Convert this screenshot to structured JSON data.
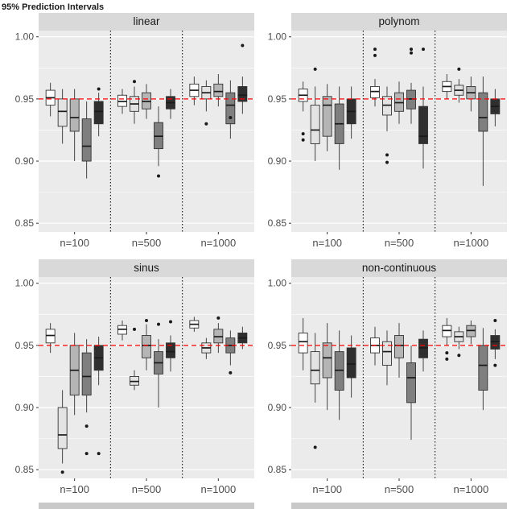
{
  "title_fragment": "95% Prediction Intervals",
  "colors": {
    "strip_bg": "#d9d9d9",
    "strip_text": "#1a1a1a",
    "panel_bg": "#ebebeb",
    "grid": "#ffffff",
    "axis_text": "#4d4d4d",
    "ref_line": "#ff0000",
    "box_stroke": "#333333",
    "median": "#1a1a1a",
    "outlier": "#1a1a1a"
  },
  "box_fills": [
    "#ffffff",
    "#e3e3e3",
    "#b5b5b5",
    "#7f7f7f",
    "#2f2f2f"
  ],
  "axis": {
    "y_ticks": [
      "1.00",
      "0.95",
      "0.90",
      "0.85"
    ],
    "y_tick_values": [
      1.0,
      0.95,
      0.9,
      0.85
    ],
    "y_minor": [
      0.975,
      0.925,
      0.875
    ],
    "ylim": [
      0.843,
      1.005
    ],
    "ref_line": 0.95,
    "x_groups": [
      "n=100",
      "n=500",
      "n=1000"
    ]
  },
  "chart_data": [
    {
      "type": "boxplot",
      "title": "linear",
      "groups": [
        {
          "label": "n=100",
          "boxes": [
            [
              0.936,
              0.945,
              0.951,
              0.957,
              0.963
            ],
            [
              0.914,
              0.928,
              0.94,
              0.95,
              0.958
            ],
            [
              0.9,
              0.924,
              0.935,
              0.95,
              0.958
            ],
            [
              0.886,
              0.9,
              0.912,
              0.934,
              0.948
            ],
            [
              0.92,
              0.93,
              0.94,
              0.948,
              0.955
            ]
          ],
          "outliers": [
            [],
            [],
            [],
            [],
            [
              0.958
            ]
          ]
        },
        {
          "label": "n=500",
          "boxes": [
            [
              0.938,
              0.944,
              0.948,
              0.953,
              0.958
            ],
            [
              0.93,
              0.94,
              0.946,
              0.952,
              0.96
            ],
            [
              0.934,
              0.942,
              0.948,
              0.955,
              0.962
            ],
            [
              0.896,
              0.91,
              0.92,
              0.931,
              0.944
            ],
            [
              0.934,
              0.942,
              0.947,
              0.952,
              0.958
            ]
          ],
          "outliers": [
            [],
            [
              0.964
            ],
            [],
            [
              0.888
            ],
            []
          ]
        },
        {
          "label": "n=1000",
          "boxes": [
            [
              0.945,
              0.952,
              0.957,
              0.962,
              0.968
            ],
            [
              0.94,
              0.95,
              0.955,
              0.96,
              0.965
            ],
            [
              0.944,
              0.952,
              0.956,
              0.962,
              0.97
            ],
            [
              0.918,
              0.93,
              0.945,
              0.955,
              0.965
            ],
            [
              0.938,
              0.948,
              0.953,
              0.96,
              0.968
            ]
          ],
          "outliers": [
            [],
            [
              0.93
            ],
            [],
            [
              0.935
            ],
            [
              0.993
            ]
          ]
        }
      ]
    },
    {
      "type": "boxplot",
      "title": "polynom",
      "groups": [
        {
          "label": "n=100",
          "boxes": [
            [
              0.94,
              0.948,
              0.953,
              0.958,
              0.964
            ],
            [
              0.9,
              0.914,
              0.925,
              0.945,
              0.96
            ],
            [
              0.908,
              0.92,
              0.945,
              0.952,
              0.962
            ],
            [
              0.893,
              0.914,
              0.93,
              0.946,
              0.96
            ],
            [
              0.918,
              0.93,
              0.94,
              0.95,
              0.96
            ]
          ],
          "outliers": [
            [
              0.922,
              0.917
            ],
            [
              0.974
            ],
            [],
            [],
            []
          ]
        },
        {
          "label": "n=500",
          "boxes": [
            [
              0.944,
              0.951,
              0.956,
              0.96,
              0.966
            ],
            [
              0.924,
              0.937,
              0.945,
              0.952,
              0.96
            ],
            [
              0.93,
              0.94,
              0.947,
              0.955,
              0.964
            ],
            [
              0.93,
              0.942,
              0.95,
              0.957,
              0.963
            ],
            [
              0.894,
              0.914,
              0.92,
              0.944,
              0.96
            ]
          ],
          "outliers": [
            [
              0.985,
              0.99
            ],
            [
              0.905,
              0.899
            ],
            [],
            [
              0.99,
              0.987
            ],
            [
              0.99
            ]
          ]
        },
        {
          "label": "n=1000",
          "boxes": [
            [
              0.95,
              0.956,
              0.96,
              0.964,
              0.97
            ],
            [
              0.947,
              0.953,
              0.957,
              0.961,
              0.966
            ],
            [
              0.94,
              0.95,
              0.955,
              0.96,
              0.968
            ],
            [
              0.88,
              0.924,
              0.935,
              0.955,
              0.968
            ],
            [
              0.928,
              0.938,
              0.944,
              0.95,
              0.958
            ]
          ],
          "outliers": [
            [],
            [
              0.974
            ],
            [],
            [],
            []
          ]
        }
      ]
    },
    {
      "type": "boxplot",
      "title": "sinus",
      "groups": [
        {
          "label": "n=100",
          "boxes": [
            [
              0.944,
              0.952,
              0.958,
              0.963,
              0.968
            ],
            [
              0.855,
              0.867,
              0.878,
              0.9,
              0.914
            ],
            [
              0.894,
              0.91,
              0.93,
              0.95,
              0.96
            ],
            [
              0.896,
              0.91,
              0.925,
              0.944,
              0.955
            ],
            [
              0.918,
              0.93,
              0.94,
              0.95,
              0.957
            ]
          ],
          "outliers": [
            [],
            [
              0.848
            ],
            [],
            [
              0.885,
              0.863
            ],
            [
              0.863
            ]
          ]
        },
        {
          "label": "n=500",
          "boxes": [
            [
              0.954,
              0.959,
              0.963,
              0.966,
              0.97
            ],
            [
              0.914,
              0.918,
              0.921,
              0.925,
              0.93
            ],
            [
              0.93,
              0.94,
              0.95,
              0.958,
              0.967
            ],
            [
              0.9,
              0.927,
              0.936,
              0.945,
              0.955
            ],
            [
              0.929,
              0.94,
              0.945,
              0.952,
              0.958
            ]
          ],
          "outliers": [
            [],
            [
              0.963
            ],
            [
              0.97
            ],
            [
              0.967
            ],
            [
              0.969
            ]
          ]
        },
        {
          "label": "n=1000",
          "boxes": [
            [
              0.961,
              0.964,
              0.967,
              0.97,
              0.973
            ],
            [
              0.939,
              0.944,
              0.948,
              0.952,
              0.956
            ],
            [
              0.944,
              0.952,
              0.957,
              0.963,
              0.968
            ],
            [
              0.934,
              0.944,
              0.95,
              0.956,
              0.962
            ],
            [
              0.947,
              0.952,
              0.956,
              0.96,
              0.965
            ]
          ],
          "outliers": [
            [],
            [],
            [
              0.972
            ],
            [
              0.928
            ],
            []
          ]
        }
      ]
    },
    {
      "type": "boxplot",
      "title": "non-continuous",
      "groups": [
        {
          "label": "n=100",
          "boxes": [
            [
              0.93,
              0.944,
              0.953,
              0.96,
              0.972
            ],
            [
              0.904,
              0.919,
              0.93,
              0.945,
              0.96
            ],
            [
              0.898,
              0.924,
              0.94,
              0.952,
              0.968
            ],
            [
              0.89,
              0.914,
              0.93,
              0.945,
              0.962
            ],
            [
              0.908,
              0.924,
              0.935,
              0.948,
              0.958
            ]
          ],
          "outliers": [
            [],
            [
              0.868
            ],
            [],
            [],
            []
          ]
        },
        {
          "label": "n=500",
          "boxes": [
            [
              0.934,
              0.944,
              0.95,
              0.956,
              0.965
            ],
            [
              0.918,
              0.934,
              0.945,
              0.953,
              0.962
            ],
            [
              0.924,
              0.94,
              0.95,
              0.958,
              0.968
            ],
            [
              0.874,
              0.904,
              0.924,
              0.936,
              0.95
            ],
            [
              0.929,
              0.94,
              0.948,
              0.955,
              0.962
            ]
          ],
          "outliers": [
            [],
            [],
            [],
            [],
            []
          ]
        },
        {
          "label": "n=1000",
          "boxes": [
            [
              0.95,
              0.957,
              0.962,
              0.966,
              0.972
            ],
            [
              0.947,
              0.953,
              0.957,
              0.961,
              0.965
            ],
            [
              0.951,
              0.957,
              0.962,
              0.966,
              0.97
            ],
            [
              0.898,
              0.914,
              0.934,
              0.95,
              0.964
            ],
            [
              0.939,
              0.947,
              0.953,
              0.958,
              0.963
            ]
          ],
          "outliers": [
            [
              0.944,
              0.939
            ],
            [
              0.942
            ],
            [],
            [],
            [
              0.97,
              0.934
            ]
          ]
        }
      ]
    }
  ]
}
